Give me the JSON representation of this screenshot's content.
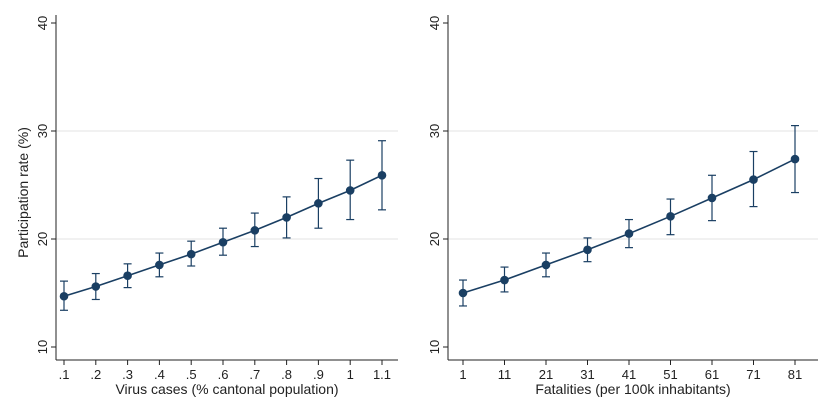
{
  "chart_data": [
    {
      "type": "line",
      "id": "left",
      "x_tick_labels": [
        ".1",
        ".2",
        ".3",
        ".4",
        ".5",
        ".6",
        ".7",
        ".8",
        ".9",
        "1",
        "1.1"
      ],
      "x": [
        0.1,
        0.2,
        0.3,
        0.4,
        0.5,
        0.6,
        0.7,
        0.8,
        0.9,
        1.0,
        1.1
      ],
      "values": [
        14.7,
        15.6,
        16.6,
        17.6,
        18.6,
        19.7,
        20.8,
        22.0,
        23.3,
        24.5,
        25.9
      ],
      "ci_low": [
        13.4,
        14.4,
        15.5,
        16.5,
        17.5,
        18.5,
        19.3,
        20.1,
        21.0,
        21.8,
        22.7
      ],
      "ci_high": [
        16.1,
        16.8,
        17.7,
        18.7,
        19.8,
        21.0,
        22.4,
        23.9,
        25.6,
        27.3,
        29.1
      ],
      "xlabel": "Virus cases (% cantonal population)",
      "ylabel": "Participation rate (%)",
      "ylim": [
        10,
        40
      ],
      "y_ticks": [
        10,
        20,
        30,
        40
      ],
      "grid": true
    },
    {
      "type": "line",
      "id": "right",
      "x_tick_labels": [
        "1",
        "11",
        "21",
        "31",
        "41",
        "51",
        "61",
        "71",
        "81"
      ],
      "x": [
        1,
        11,
        21,
        31,
        41,
        51,
        61,
        71,
        81
      ],
      "values": [
        15.0,
        16.2,
        17.6,
        19.0,
        20.5,
        22.1,
        23.8,
        25.5,
        27.4
      ],
      "ci_low": [
        13.8,
        15.1,
        16.5,
        17.9,
        19.2,
        20.4,
        21.7,
        23.0,
        24.3
      ],
      "ci_high": [
        16.2,
        17.4,
        18.7,
        20.1,
        21.8,
        23.7,
        25.9,
        28.1,
        30.5
      ],
      "xlabel": "Fatalities (per 100k inhabitants)",
      "ylabel": "",
      "ylim": [
        10,
        40
      ],
      "y_ticks": [
        10,
        20,
        30,
        40
      ],
      "grid": true
    }
  ],
  "colors": {
    "series": "#1a3f63",
    "axis": "#222222",
    "grid": "#e3e3e3"
  }
}
